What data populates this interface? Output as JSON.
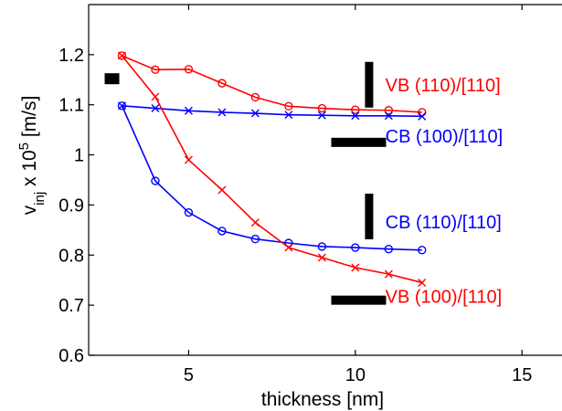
{
  "chart_data": {
    "type": "line",
    "title": "",
    "xlabel": "thickness [nm]",
    "ylabel": {
      "base": "v",
      "sub": "inj",
      "mid": " x 10",
      "sup": "5",
      "unit": " [m/s]"
    },
    "xlim": [
      2,
      16.2
    ],
    "ylim": [
      0.6,
      1.3
    ],
    "xticks": [
      5,
      10,
      15
    ],
    "yticks": [
      0.6,
      0.7,
      0.8,
      0.9,
      1.0,
      1.1,
      1.2
    ],
    "xtick_labels": [
      "5",
      "10",
      "15"
    ],
    "ytick_labels": [
      "0.6",
      "0.7",
      "0.8",
      "0.9",
      "1",
      "1.1",
      "1.2"
    ],
    "grid": false,
    "legend": "none",
    "series": [
      {
        "name": "VB (110)/[110]",
        "color": "#ff0000",
        "marker": "circle",
        "x": [
          3,
          4,
          5,
          6,
          7,
          8,
          9,
          10,
          11,
          12
        ],
        "y": [
          1.198,
          1.17,
          1.171,
          1.143,
          1.115,
          1.097,
          1.093,
          1.09,
          1.089,
          1.085
        ]
      },
      {
        "name": "CB (100)/[110]",
        "color": "#0000ff",
        "marker": "x",
        "x": [
          3,
          4,
          5,
          6,
          7,
          8,
          9,
          10,
          11,
          12
        ],
        "y": [
          1.098,
          1.093,
          1.088,
          1.085,
          1.083,
          1.08,
          1.079,
          1.078,
          1.078,
          1.077
        ]
      },
      {
        "name": "CB (110)/[110]",
        "color": "#0000ff",
        "marker": "circle",
        "x": [
          3,
          4,
          5,
          6,
          7,
          8,
          9,
          10,
          11,
          12
        ],
        "y": [
          1.098,
          0.948,
          0.885,
          0.848,
          0.832,
          0.824,
          0.817,
          0.815,
          0.812,
          0.81
        ]
      },
      {
        "name": "VB (100)/[110]",
        "color": "#ff0000",
        "marker": "x",
        "x": [
          3,
          4,
          5,
          6,
          7,
          8,
          9,
          10,
          11,
          12
        ],
        "y": [
          1.198,
          1.116,
          0.99,
          0.93,
          0.865,
          0.815,
          0.795,
          0.775,
          0.762,
          0.745
        ]
      }
    ],
    "annotations": [
      {
        "text": "VB (110)/[110]",
        "color": "#ff0000",
        "x": 10.9,
        "y": 1.127
      },
      {
        "text": "CB (100)/[110]",
        "color": "#0000ff",
        "x": 10.9,
        "y": 1.025
      },
      {
        "text": "CB (110)/[110]",
        "color": "#0000ff",
        "x": 10.9,
        "y": 0.853
      },
      {
        "text": "VB (100)/[110]",
        "color": "#ff0000",
        "x": 10.9,
        "y": 0.705
      }
    ],
    "markers_black": [
      {
        "shape": "square",
        "x": 2.7,
        "y": 1.152
      },
      {
        "shape": "vbar",
        "x": 10.4,
        "y": 1.14
      },
      {
        "shape": "hbar",
        "x": 10.1,
        "y": 1.025
      },
      {
        "shape": "vbar",
        "x": 10.4,
        "y": 0.877
      },
      {
        "shape": "hbar",
        "x": 10.1,
        "y": 0.71
      }
    ]
  }
}
